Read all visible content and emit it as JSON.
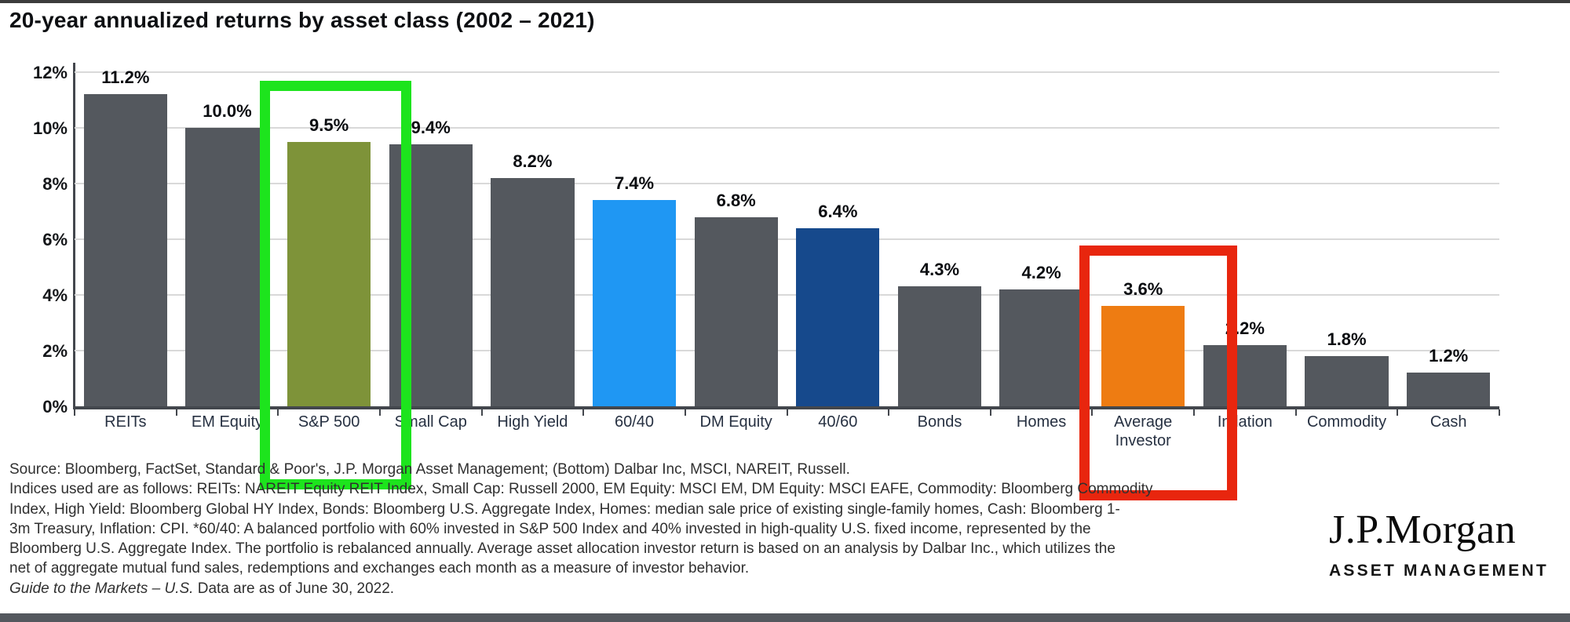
{
  "title": "20-year annualized returns by asset class (2002 – 2021)",
  "chart_data": {
    "type": "bar",
    "title": "20-year annualized returns by asset class (2002 – 2021)",
    "categories": [
      "REITs",
      "EM Equity",
      "S&P 500",
      "Small Cap",
      "High Yield",
      "60/40",
      "DM Equity",
      "40/60",
      "Bonds",
      "Homes",
      "Average Investor",
      "Inflation",
      "Commodity",
      "Cash"
    ],
    "values": [
      11.2,
      10.0,
      9.5,
      9.4,
      8.2,
      7.4,
      6.8,
      6.4,
      4.3,
      4.2,
      3.6,
      2.2,
      1.8,
      1.2
    ],
    "labels": [
      "11.2%",
      "10.0%",
      "9.5%",
      "9.4%",
      "8.2%",
      "7.4%",
      "6.8%",
      "6.4%",
      "4.3%",
      "4.2%",
      "3.6%",
      "2.2%",
      "1.8%",
      "1.2%"
    ],
    "bar_colors": [
      "#54585e",
      "#54585e",
      "#7e9339",
      "#54585e",
      "#54585e",
      "#1f97f3",
      "#54585e",
      "#16498c",
      "#54585e",
      "#54585e",
      "#ee7c12",
      "#54585e",
      "#54585e",
      "#54585e"
    ],
    "xlabel": "",
    "ylabel": "",
    "ylim": [
      0,
      12
    ],
    "yticks": [
      "12%",
      "10%",
      "8%",
      "6%",
      "4%",
      "2%",
      "0%"
    ],
    "grid": true,
    "legend": "none",
    "highlights": [
      {
        "category": "S&P 500",
        "box_color": "#1de41d",
        "name": "green-highlight-box"
      },
      {
        "category": "Average Investor",
        "box_color": "#e8260e",
        "name": "red-highlight-box"
      }
    ]
  },
  "footnote": {
    "lines": [
      "Source: Bloomberg, FactSet, Standard & Poor's, J.P. Morgan Asset Management; (Bottom) Dalbar Inc, MSCI, NAREIT, Russell.",
      "Indices used are as follows: REITs: NAREIT Equity REIT Index, Small Cap: Russell 2000, EM Equity: MSCI EM, DM Equity: MSCI EAFE, Commodity: Bloomberg Commodity",
      "Index, High Yield: Bloomberg Global HY Index, Bonds: Bloomberg U.S. Aggregate Index, Homes: median sale price of existing single-family homes, Cash: Bloomberg 1-",
      "3m Treasury, Inflation: CPI. *60/40: A balanced portfolio with 60% invested in S&P 500 Index and 40% invested in high-quality U.S. fixed income, represented by the",
      "Bloomberg U.S. Aggregate Index. The portfolio is rebalanced annually. Average asset allocation investor return is based on an analysis by Dalbar Inc., which utilizes the",
      "net of aggregate mutual fund sales, redemptions and exchanges each month as a measure of investor behavior."
    ],
    "guide_italic": "Guide to the Markets – U.S.",
    "guide_rest": " Data are as of June 30, 2022."
  },
  "logo": {
    "brand": "J.P.Morgan",
    "division": "ASSET MANAGEMENT"
  },
  "colors": {
    "bar_default": "#54585e",
    "bar_sp500": "#7e9339",
    "bar_6040": "#1f97f3",
    "bar_4060": "#16498c",
    "bar_average_investor": "#ee7c12",
    "highlight_green": "#1de41d",
    "highlight_red": "#e8260e",
    "gridline": "#d9d9d9",
    "axis": "#43474d"
  }
}
